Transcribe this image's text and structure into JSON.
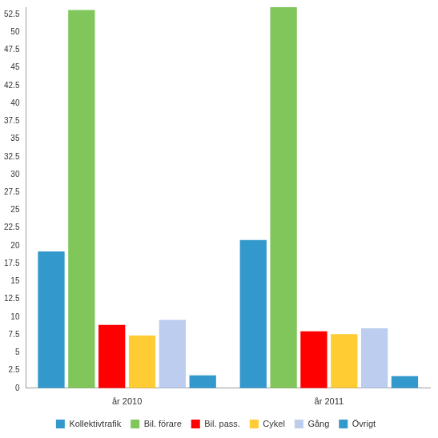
{
  "chart_data": {
    "type": "bar",
    "categories": [
      "år 2010",
      "år 2011"
    ],
    "series": [
      {
        "name": "Kollektivtrafik",
        "color": "#3399cc",
        "values": [
          19.2,
          20.8
        ]
      },
      {
        "name": "Bil. förare",
        "color": "#80c65a",
        "values": [
          53.1,
          53.5
        ]
      },
      {
        "name": "Bil. pass.",
        "color": "#ff0000",
        "values": [
          8.9,
          8.0
        ]
      },
      {
        "name": "Cykel",
        "color": "#ffcc33",
        "values": [
          7.4,
          7.6
        ]
      },
      {
        "name": "Gång",
        "color": "#bccdf0",
        "values": [
          9.6,
          8.4
        ]
      },
      {
        "name": "Övrigt",
        "color": "#3399cc",
        "values": [
          1.8,
          1.7
        ]
      }
    ],
    "ylim": [
      0,
      53.5
    ],
    "yticks": [
      0,
      2.5,
      5,
      7.5,
      10,
      12.5,
      15,
      17.5,
      20,
      22.5,
      25,
      27.5,
      30,
      32.5,
      35,
      37.5,
      40,
      42.5,
      45,
      47.5,
      50,
      52.5
    ],
    "grid": false,
    "legend": "bottom"
  }
}
